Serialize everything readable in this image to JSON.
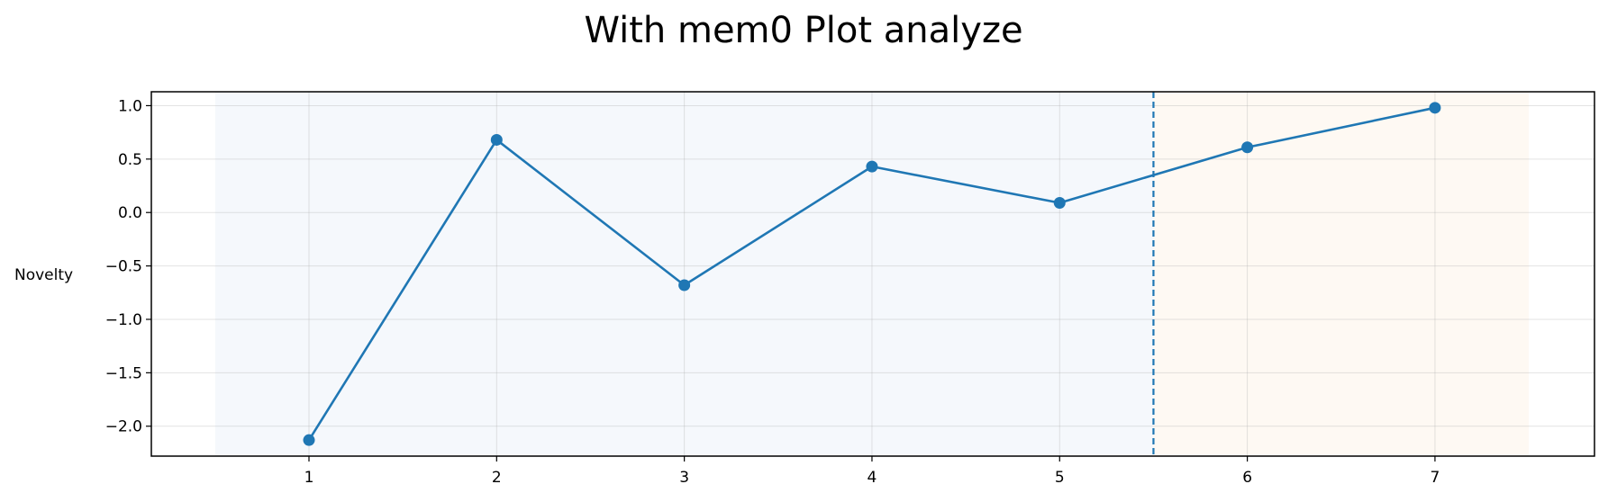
{
  "chart_data": {
    "type": "line",
    "title": "With mem0 Plot analyze",
    "xlabel": "",
    "ylabel": "Novelty",
    "x": [
      1,
      2,
      3,
      4,
      5,
      6,
      7
    ],
    "series": [
      {
        "values": [
          -2.13,
          0.68,
          -0.68,
          0.43,
          0.09,
          0.61,
          0.98
        ],
        "color": "#1f77b4",
        "marker": "circle"
      }
    ],
    "xticks": [
      "1",
      "2",
      "3",
      "4",
      "5",
      "6",
      "7"
    ],
    "yticks": [
      "1.0",
      "0.5",
      "0.0",
      "−0.5",
      "−1.0",
      "−1.5",
      "−2.0"
    ],
    "xlim": [
      0.16,
      7.85
    ],
    "ylim": [
      -2.28,
      1.13
    ],
    "grid": true,
    "shaded_regions": [
      {
        "x_start": 0.5,
        "x_end": 5.5,
        "color": "#f5f8fc"
      },
      {
        "x_start": 5.5,
        "x_end": 7.5,
        "color": "#fef9f3"
      }
    ],
    "vertical_line": {
      "x": 5.5,
      "style": "dashed",
      "color": "#1f77b4"
    },
    "legend": "none"
  }
}
